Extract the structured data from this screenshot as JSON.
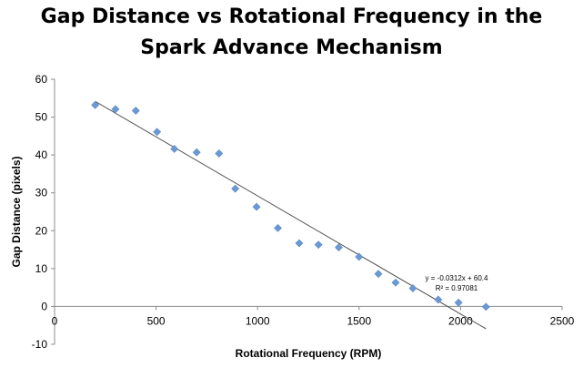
{
  "chart_data": {
    "type": "scatter",
    "title_lines": [
      "Gap Distance vs Rotational Frequency in the",
      "Spark Advance Mechanism"
    ],
    "xlabel": "Rotational Frequency (RPM)",
    "ylabel": "Gap Distance (pixels)",
    "xlim": [
      0,
      2500
    ],
    "ylim": [
      -10,
      60
    ],
    "x_ticks": [
      0,
      500,
      1000,
      1500,
      2000,
      2500
    ],
    "y_ticks": [
      -10,
      0,
      10,
      20,
      30,
      40,
      50,
      60
    ],
    "grid": false,
    "legend": "none",
    "marker_color": "#6a9ad6",
    "points": [
      {
        "x": 200,
        "y": 53.2
      },
      {
        "x": 300,
        "y": 52.1
      },
      {
        "x": 400,
        "y": 51.7
      },
      {
        "x": 505,
        "y": 46.1
      },
      {
        "x": 590,
        "y": 41.6
      },
      {
        "x": 700,
        "y": 40.7
      },
      {
        "x": 810,
        "y": 40.4
      },
      {
        "x": 890,
        "y": 31.1
      },
      {
        "x": 995,
        "y": 26.3
      },
      {
        "x": 1100,
        "y": 20.7
      },
      {
        "x": 1205,
        "y": 16.7
      },
      {
        "x": 1300,
        "y": 16.3
      },
      {
        "x": 1400,
        "y": 15.6
      },
      {
        "x": 1500,
        "y": 13.1
      },
      {
        "x": 1595,
        "y": 8.6
      },
      {
        "x": 1680,
        "y": 6.3
      },
      {
        "x": 1765,
        "y": 4.8
      },
      {
        "x": 1890,
        "y": 1.8
      },
      {
        "x": 1990,
        "y": 1.0
      },
      {
        "x": 2125,
        "y": -0.1
      }
    ],
    "trendline": {
      "slope": -0.0312,
      "intercept": 60.4,
      "x_range": [
        200,
        2125
      ],
      "equation": "y = -0.0312x + 60.4",
      "r_squared": "R² = 0.97081"
    }
  }
}
